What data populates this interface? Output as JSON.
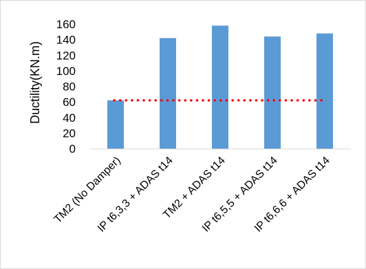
{
  "chart_data": {
    "type": "bar",
    "categories": [
      "TM2 (No Damper)",
      "IP t6,3,3 + ADAS t14",
      "TM2 + ADAS t14",
      "IP t6,5,5 + ADAS t14",
      "IP t6,6,6 + ADAS t14"
    ],
    "values": [
      62,
      142,
      158,
      144,
      148
    ],
    "reference_line": {
      "value": 62,
      "style": "dotted",
      "color": "#ff0000"
    },
    "title": "",
    "xlabel": "",
    "ylabel": "Ductility(KN.m)",
    "ylim": [
      0,
      160
    ],
    "yticks": [
      0,
      20,
      40,
      60,
      80,
      100,
      120,
      140,
      160
    ],
    "grid": false,
    "legend": "none",
    "colors": {
      "bar": "#5b9bd5",
      "axis": "#d9d9d9",
      "reference": "#ff0000"
    }
  }
}
